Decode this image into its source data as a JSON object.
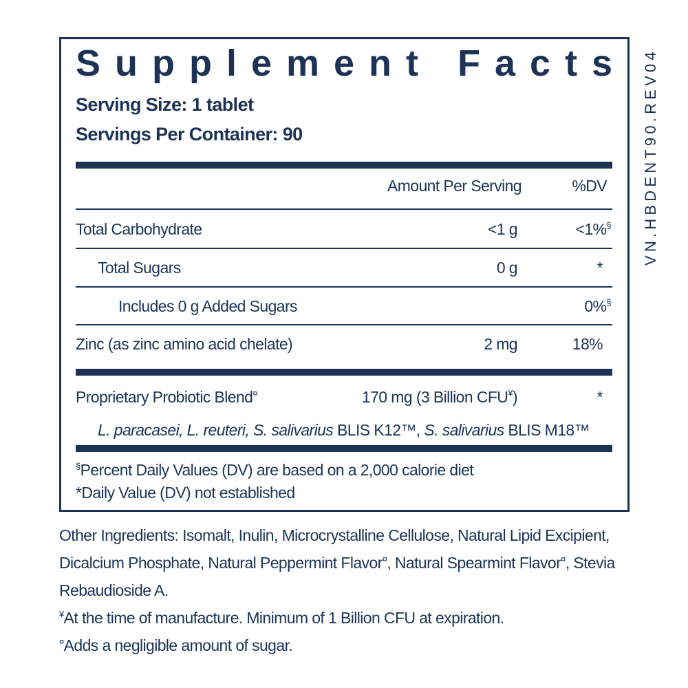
{
  "title": "Supplement Facts",
  "serving_size": "Serving Size: 1 tablet",
  "servings_per_container": "Servings Per Container: 90",
  "side_code": "VN.HBDENT90.REV04",
  "header": {
    "amount": "Amount Per Serving",
    "dv": "%DV"
  },
  "rows": [
    {
      "name": "Total Carbohydrate",
      "amount": "<1 g",
      "dv": "<1%",
      "dv_note": "§"
    },
    {
      "name": "Total Sugars",
      "amount": "0 g",
      "dv": "*"
    },
    {
      "name": "Includes 0 g Added Sugars",
      "dv": "0%",
      "dv_note": "§"
    },
    {
      "name": "Zinc (as zinc amino acid chelate)",
      "amount": "2 mg",
      "dv": "18%"
    }
  ],
  "blend": {
    "name": "Proprietary Probiotic Blend",
    "name_note": "¤",
    "amount": "170 mg (3 Billion CFU",
    "amount_note": "¥",
    "amount_end": ")",
    "dv": "*",
    "strains": [
      {
        "text": "L. paracasei, L. reuteri, S. salivarius",
        "italic": true
      },
      {
        "text": " BLIS K12™, ",
        "italic": false
      },
      {
        "text": "S. salivarius",
        "italic": true
      },
      {
        "text": " BLIS M18™",
        "italic": false
      }
    ]
  },
  "footnotes": {
    "dv_note": "§",
    "dv_text": "Percent Daily Values (DV) are based on a 2,000 calorie diet",
    "not_established": "*Daily Value (DV) not established"
  },
  "other_ingredients": {
    "text_1": "Other Ingredients: Isomalt, Inulin, Microcrystalline Cellulose, Natural Lipid Excipient, Dicalcium Phosphate, Natural Peppermint Flavor",
    "note_1": "¤",
    "text_2": ", Natural Spearmint Flavor",
    "note_2": "¤",
    "text_3": ", Stevia Rebaudioside A."
  },
  "notes": [
    {
      "mark": "¥",
      "text": "At the time of manufacture. Minimum of 1 Billion CFU at expiration."
    },
    {
      "mark": "¤",
      "text": "Adds a negligible amount of sugar."
    }
  ]
}
